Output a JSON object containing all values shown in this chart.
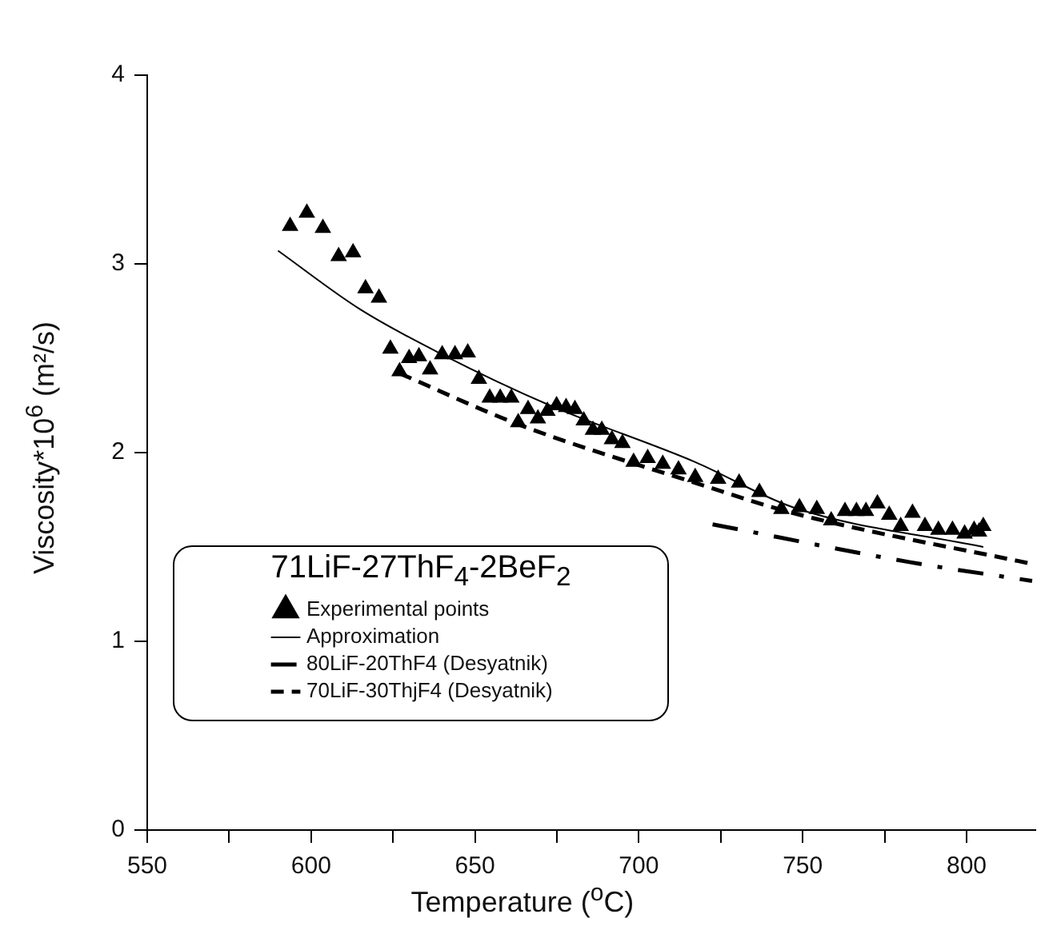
{
  "chart_data": {
    "type": "line",
    "xlabel": "Temperature ($^{o}$C)",
    "ylabel": "Viscosity*10$^{6}$ (m²/s)",
    "legend_title": "71LiF-27ThF$_{4}$-2BeF$_{2}$",
    "legend": "bottom left",
    "grid": false,
    "xlim": [
      550,
      821
    ],
    "xticks": [
      550,
      {
        "value": 575,
        "label": null
      },
      600,
      {
        "value": 625,
        "label": null
      },
      650,
      {
        "value": 675,
        "label": null
      },
      700,
      {
        "value": 725,
        "label": null
      },
      750,
      {
        "value": 775,
        "label": null
      },
      800
    ],
    "ylim": [
      0,
      4
    ],
    "yticks": [
      0,
      1,
      2,
      3,
      4
    ],
    "series": [
      {
        "name": "Experimental points",
        "type": "scatter",
        "marker": "triangle",
        "color": "#000000",
        "x": [
          593.6,
          598.7,
          603.6,
          608.4,
          612.8,
          616.6,
          620.7,
          624.2,
          627.0,
          629.9,
          632.9,
          636.3,
          640.0,
          643.9,
          647.8,
          651.2,
          654.5,
          657.7,
          661.1,
          663.2,
          666.2,
          669.2,
          672.1,
          674.9,
          677.8,
          680.5,
          683.2,
          686.0,
          688.7,
          691.8,
          695.0,
          698.4,
          702.7,
          707.3,
          712.1,
          717.2,
          724.2,
          730.6,
          736.8,
          743.5,
          749.0,
          754.3,
          758.7,
          762.9,
          766.4,
          769.3,
          772.8,
          776.4,
          779.9,
          783.5,
          787.3,
          791.4,
          795.7,
          799.4,
          802.3,
          803.8,
          805.1
        ],
        "values": [
          3.2,
          3.27,
          3.19,
          3.04,
          3.06,
          2.87,
          2.82,
          2.55,
          2.43,
          2.5,
          2.51,
          2.44,
          2.52,
          2.52,
          2.53,
          2.39,
          2.29,
          2.29,
          2.29,
          2.16,
          2.23,
          2.18,
          2.22,
          2.25,
          2.24,
          2.23,
          2.17,
          2.12,
          2.12,
          2.07,
          2.05,
          1.95,
          1.97,
          1.94,
          1.91,
          1.87,
          1.86,
          1.84,
          1.79,
          1.7,
          1.71,
          1.7,
          1.64,
          1.69,
          1.69,
          1.69,
          1.73,
          1.67,
          1.61,
          1.68,
          1.61,
          1.59,
          1.59,
          1.57,
          1.59,
          1.58,
          1.61
        ]
      },
      {
        "name": "Approximation",
        "type": "line",
        "marker": "none",
        "line_style": "solid",
        "color": "#000000",
        "x": [
          589.9,
          614.9,
          640.0,
          672.9,
          717.2,
          747.1,
          805.1
        ],
        "values": [
          3.07,
          2.76,
          2.52,
          2.25,
          1.95,
          1.71,
          1.5
        ]
      },
      {
        "name": "80LiF-20ThF4 (Desyatnik)",
        "type": "line",
        "marker": "none",
        "line_style": "dashdot",
        "color": "#000000",
        "x": [
          722.5,
          782.5,
          820
        ],
        "values": [
          1.62,
          1.42,
          1.32
        ]
      },
      {
        "name": "70LiF-30ThjF4 (Desyatnik)",
        "type": "line",
        "marker": "none",
        "line_style": "dashed",
        "color": "#000000",
        "x": [
          627.0,
          663.2,
          717.2,
          747.0,
          820
        ],
        "values": [
          2.42,
          2.15,
          1.84,
          1.68,
          1.41
        ]
      }
    ]
  }
}
